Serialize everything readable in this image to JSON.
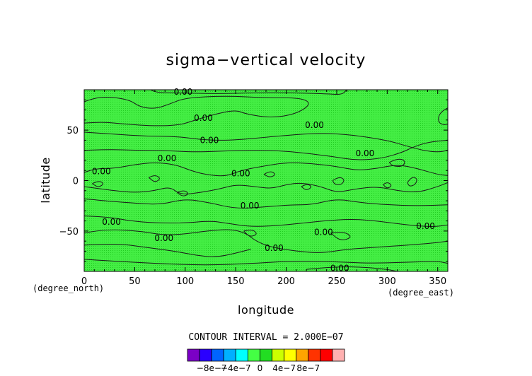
{
  "chart_data": {
    "type": "contour",
    "title": "sigma−vertical velocity",
    "xlabel": "longitude",
    "ylabel": "latitude",
    "x_unit": "(degree_east)",
    "y_unit": "(degree_north)",
    "xlim": [
      0,
      360
    ],
    "ylim": [
      -90,
      90
    ],
    "x_ticks": [
      0,
      50,
      100,
      150,
      200,
      250,
      300,
      350
    ],
    "y_ticks": [
      -50,
      0,
      50
    ],
    "y_tick_labels": [
      "−50",
      "0",
      "50"
    ],
    "contour_interval_text": "CONTOUR INTERVAL = 2.000E−07",
    "contour_labels": [
      {
        "lon": 98,
        "lat": 88,
        "text": "0.00"
      },
      {
        "lon": 118,
        "lat": 62,
        "text": "0.00"
      },
      {
        "lon": 228,
        "lat": 55,
        "text": "0.00"
      },
      {
        "lon": 124,
        "lat": 40,
        "text": "0.00"
      },
      {
        "lon": 82,
        "lat": 22,
        "text": "0.00"
      },
      {
        "lon": 278,
        "lat": 27,
        "text": "0.00"
      },
      {
        "lon": 17,
        "lat": 9,
        "text": "0.00"
      },
      {
        "lon": 155,
        "lat": 7,
        "text": "0.00"
      },
      {
        "lon": 164,
        "lat": -25,
        "text": "0.00"
      },
      {
        "lon": 27,
        "lat": -41,
        "text": "0.00"
      },
      {
        "lon": 338,
        "lat": -45,
        "text": "0.00"
      },
      {
        "lon": 79,
        "lat": -57,
        "text": "0.00"
      },
      {
        "lon": 237,
        "lat": -51,
        "text": "0.00"
      },
      {
        "lon": 188,
        "lat": -67,
        "text": "0.00"
      },
      {
        "lon": 253,
        "lat": -87,
        "text": "0.00"
      }
    ],
    "colorbar": {
      "colors": [
        "#7b00c6",
        "#2a00ff",
        "#0064ff",
        "#00b0ff",
        "#00ffff",
        "#44ff44",
        "#22dd22",
        "#ccff00",
        "#ffff00",
        "#ffa500",
        "#ff3300",
        "#ff0000",
        "#ffb0b0"
      ],
      "labels": [
        "−8e−7",
        "−4e−7",
        "0",
        "4e−7",
        "8e−7"
      ],
      "label_at_boundary": [
        2,
        4,
        6,
        8,
        10
      ]
    },
    "fill_color": "#44ee44",
    "fill_texture_color": "#22cc22",
    "contour_color": "#1a1a1a"
  }
}
